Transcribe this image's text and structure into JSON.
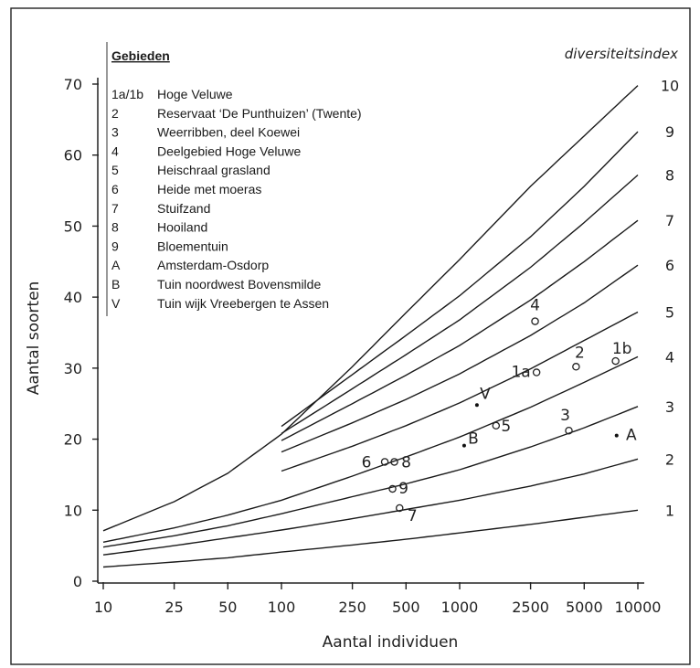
{
  "chart_data": {
    "type": "line",
    "xlabel": "Aantal individuen",
    "ylabel": "Aantal soorten",
    "xscale": "log",
    "xlim": [
      10,
      10000
    ],
    "ylim": [
      0,
      70
    ],
    "x_ticks": [
      10,
      25,
      50,
      100,
      250,
      500,
      1000,
      2500,
      5000,
      10000
    ],
    "x_tick_labels": [
      "10",
      "25",
      "50",
      "100",
      "250",
      "500",
      "1000",
      "2500",
      "5000",
      "10000"
    ],
    "y_ticks": [
      0,
      10,
      20,
      30,
      40,
      50,
      60,
      70
    ],
    "y_tick_labels": [
      "0",
      "10",
      "20",
      "30",
      "40",
      "50",
      "60",
      "70"
    ],
    "grid": false,
    "right_axis_title": "diversiteitsindex",
    "legend": {
      "title": "Gebieden",
      "position": "top-left",
      "entries": [
        {
          "code": "1a/1b",
          "name": "Hoge Veluwe"
        },
        {
          "code": "2",
          "name": "Reservaat ‘De Punthuizen’ (Twente)"
        },
        {
          "code": "3",
          "name": "Weerribben, deel Koewei"
        },
        {
          "code": "4",
          "name": "Deelgebied Hoge Veluwe"
        },
        {
          "code": "5",
          "name": "Heischraal grasland"
        },
        {
          "code": "6",
          "name": "Heide met moeras"
        },
        {
          "code": "7",
          "name": "Stuifzand"
        },
        {
          "code": "8",
          "name": "Hooiland"
        },
        {
          "code": "9",
          "name": "Bloementuin"
        },
        {
          "code": "A",
          "name": "Amsterdam-Osdorp"
        },
        {
          "code": "B",
          "name": "Tuin noordwest Bovensmilde"
        },
        {
          "code": "V",
          "name": "Tuin wijk Vreebergen te Assen"
        }
      ]
    },
    "series": [
      {
        "name": "1",
        "x": [
          10,
          25,
          50,
          100,
          250,
          500,
          1000,
          2500,
          5000,
          10000
        ],
        "y": [
          2,
          2.7,
          3.3,
          4.1,
          5.1,
          5.9,
          6.8,
          8.0,
          9.0,
          10.0
        ]
      },
      {
        "name": "2",
        "x": [
          10,
          25,
          50,
          100,
          250,
          500,
          1000,
          2500,
          5000,
          10000
        ],
        "y": [
          3.7,
          5.0,
          6.1,
          7.2,
          8.8,
          10.1,
          11.4,
          13.4,
          15.1,
          17.2
        ]
      },
      {
        "name": "3",
        "x": [
          10,
          25,
          50,
          100,
          250,
          500,
          1000,
          2500,
          5000,
          10000
        ],
        "y": [
          4.8,
          6.4,
          7.8,
          9.5,
          11.9,
          13.7,
          15.7,
          18.9,
          21.6,
          24.6
        ]
      },
      {
        "name": "4",
        "x": [
          10,
          25,
          50,
          100,
          250,
          500,
          1000,
          2500,
          5000,
          10000
        ],
        "y": [
          5.5,
          7.5,
          9.3,
          11.4,
          14.8,
          17.5,
          20.3,
          24.5,
          28.0,
          31.6
        ]
      },
      {
        "name": "5",
        "x": [
          100,
          250,
          500,
          1000,
          2500,
          5000,
          10000
        ],
        "y": [
          15.5,
          19.0,
          21.9,
          25.1,
          29.9,
          33.9,
          37.9
        ]
      },
      {
        "name": "6",
        "x": [
          100,
          250,
          500,
          1000,
          2500,
          5000,
          10000
        ],
        "y": [
          18.2,
          22.3,
          25.6,
          29.2,
          34.6,
          39.2,
          44.5
        ]
      },
      {
        "name": "7",
        "x": [
          100,
          250,
          500,
          1000,
          2500,
          5000,
          10000
        ],
        "y": [
          19.8,
          25.0,
          29.0,
          33.2,
          39.6,
          45.0,
          50.8
        ]
      },
      {
        "name": "8",
        "x": [
          100,
          250,
          500,
          1000,
          2500,
          5000,
          10000
        ],
        "y": [
          20.8,
          27.1,
          31.9,
          36.8,
          44.2,
          50.5,
          57.2
        ]
      },
      {
        "name": "9",
        "x": [
          100,
          250,
          500,
          1000,
          2500,
          5000,
          10000
        ],
        "y": [
          21.8,
          29.1,
          34.6,
          40.2,
          48.5,
          55.6,
          63.3
        ]
      },
      {
        "name": "10",
        "x": [
          10,
          25,
          50,
          100,
          250,
          500,
          1000,
          2500,
          5000,
          10000
        ],
        "y": [
          7.1,
          11.2,
          15.2,
          20.7,
          30.2,
          37.8,
          45.3,
          55.6,
          62.7,
          69.8
        ]
      }
    ],
    "points": [
      {
        "label": "1a",
        "x": 2700,
        "y": 29.4,
        "marker": "circle"
      },
      {
        "label": "1b",
        "x": 7500,
        "y": 31.0,
        "marker": "circle"
      },
      {
        "label": "2",
        "x": 4500,
        "y": 30.2,
        "marker": "circle"
      },
      {
        "label": "3",
        "x": 4100,
        "y": 21.2,
        "marker": "circle"
      },
      {
        "label": "4",
        "x": 2650,
        "y": 36.6,
        "marker": "circle"
      },
      {
        "label": "5",
        "x": 1600,
        "y": 21.9,
        "marker": "circle"
      },
      {
        "label": "6",
        "x": 380,
        "y": 16.8,
        "marker": "circle"
      },
      {
        "label": "7",
        "x": 460,
        "y": 10.3,
        "marker": "circle"
      },
      {
        "label": "8",
        "x": 430,
        "y": 16.8,
        "marker": "circle"
      },
      {
        "label": "9",
        "x": 420,
        "y": 13.0,
        "marker": "circle"
      },
      {
        "label": "A",
        "x": 7600,
        "y": 20.5,
        "marker": "dot"
      },
      {
        "label": "B",
        "x": 1060,
        "y": 19.1,
        "marker": "dot"
      },
      {
        "label": "V",
        "x": 1250,
        "y": 24.8,
        "marker": "dot"
      }
    ]
  }
}
